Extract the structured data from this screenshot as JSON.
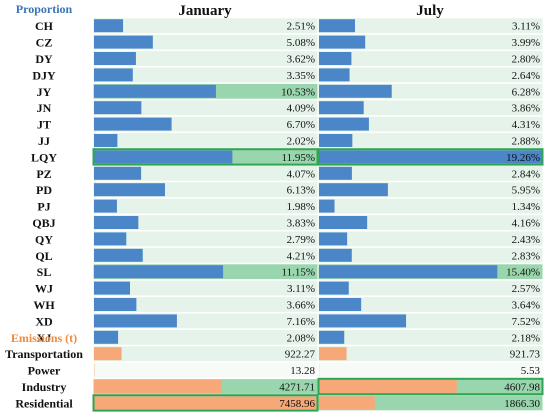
{
  "chart_data": {
    "type": "table",
    "headers": {
      "january": "January",
      "july": "July"
    },
    "sections": [
      {
        "title": "Proportion",
        "key": "proportion",
        "rows": [
          {
            "label": "CH",
            "jan": 2.51,
            "jul": 3.11,
            "jan_text": "2.51%",
            "jul_text": "3.11%"
          },
          {
            "label": "CZ",
            "jan": 5.08,
            "jul": 3.99,
            "jan_text": "5.08%",
            "jul_text": "3.99%"
          },
          {
            "label": "DY",
            "jan": 3.62,
            "jul": 2.8,
            "jan_text": "3.62%",
            "jul_text": "2.80%"
          },
          {
            "label": "DJY",
            "jan": 3.35,
            "jul": 2.64,
            "jan_text": "3.35%",
            "jul_text": "2.64%"
          },
          {
            "label": "JY",
            "jan": 10.53,
            "jul": 6.28,
            "jan_text": "10.53%",
            "jul_text": "6.28%"
          },
          {
            "label": "JN",
            "jan": 4.09,
            "jul": 3.86,
            "jan_text": "4.09%",
            "jul_text": "3.86%"
          },
          {
            "label": "JT",
            "jan": 6.7,
            "jul": 4.31,
            "jan_text": "6.70%",
            "jul_text": "4.31%"
          },
          {
            "label": "JJ",
            "jan": 2.02,
            "jul": 2.88,
            "jan_text": "2.02%",
            "jul_text": "2.88%"
          },
          {
            "label": "LQY",
            "jan": 11.95,
            "jul": 19.26,
            "jan_text": "11.95%",
            "jul_text": "19.26%"
          },
          {
            "label": "PZ",
            "jan": 4.07,
            "jul": 2.84,
            "jan_text": "4.07%",
            "jul_text": "2.84%"
          },
          {
            "label": "PD",
            "jan": 6.13,
            "jul": 5.95,
            "jan_text": "6.13%",
            "jul_text": "5.95%"
          },
          {
            "label": "PJ",
            "jan": 1.98,
            "jul": 1.34,
            "jan_text": "1.98%",
            "jul_text": "1.34%"
          },
          {
            "label": "QBJ",
            "jan": 3.83,
            "jul": 4.16,
            "jan_text": "3.83%",
            "jul_text": "4.16%"
          },
          {
            "label": "QY",
            "jan": 2.79,
            "jul": 2.43,
            "jan_text": "2.79%",
            "jul_text": "2.43%"
          },
          {
            "label": "QL",
            "jan": 4.21,
            "jul": 2.83,
            "jan_text": "4.21%",
            "jul_text": "2.83%"
          },
          {
            "label": "SL",
            "jan": 11.15,
            "jul": 15.4,
            "jan_text": "11.15%",
            "jul_text": "15.40%"
          },
          {
            "label": "WJ",
            "jan": 3.11,
            "jul": 2.57,
            "jan_text": "3.11%",
            "jul_text": "2.57%"
          },
          {
            "label": "WH",
            "jan": 3.66,
            "jul": 3.64,
            "jan_text": "3.66%",
            "jul_text": "3.64%"
          },
          {
            "label": "XD",
            "jan": 7.16,
            "jul": 7.52,
            "jan_text": "7.16%",
            "jul_text": "7.52%"
          },
          {
            "label": "XJ",
            "jan": 2.08,
            "jul": 2.18,
            "jan_text": "2.08%",
            "jul_text": "2.18%"
          }
        ]
      },
      {
        "title": "Emissions (t)",
        "key": "emissions",
        "rows": [
          {
            "label": "Transportation",
            "jan": 922.27,
            "jul": 921.73,
            "jan_text": "922.27",
            "jul_text": "921.73"
          },
          {
            "label": "Power",
            "jan": 13.28,
            "jul": 5.53,
            "jan_text": "13.28",
            "jul_text": "5.53"
          },
          {
            "label": "Industry",
            "jan": 4271.71,
            "jul": 4607.98,
            "jan_text": "4271.71",
            "jul_text": "4607.98"
          },
          {
            "label": "Residential",
            "jan": 7458.96,
            "jul": 1866.3,
            "jan_text": "7458.96",
            "jul_text": "1866.30"
          }
        ]
      }
    ],
    "scale_max": {
      "proportion": 19.26,
      "emissions": 7458.96
    },
    "highlight_max_per_column": true,
    "colors": {
      "proportion_bar": "#4a86c8",
      "emissions_bar": "#f6a878",
      "proportion_title": "#3b73b9",
      "emissions_title": "#f08a3c",
      "row_fill": "#e6f3ea",
      "strong_fill": "#9ad6ad",
      "highlight_border": "#2fa553",
      "text": "#111111"
    }
  }
}
